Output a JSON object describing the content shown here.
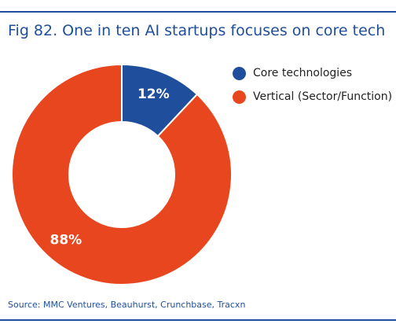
{
  "chart_data": {
    "type": "pie",
    "title": "Fig 82. One in ten AI startups focuses on core tech",
    "categories": [
      "Core technologies",
      "Vertical (Sector/Function)"
    ],
    "values": [
      12,
      88
    ],
    "value_labels": [
      "12%",
      "88%"
    ],
    "colors": [
      "#1f4e9c",
      "#e8461e"
    ],
    "donut": true,
    "legend_position": "right"
  },
  "legend": {
    "items": [
      {
        "label": "Core technologies",
        "color": "#1f4e9c"
      },
      {
        "label": "Vertical (Sector/Function)",
        "color": "#e8461e"
      }
    ]
  },
  "source": "Source: MMC Ventures, Beauhurst, Crunchbase, Tracxn"
}
